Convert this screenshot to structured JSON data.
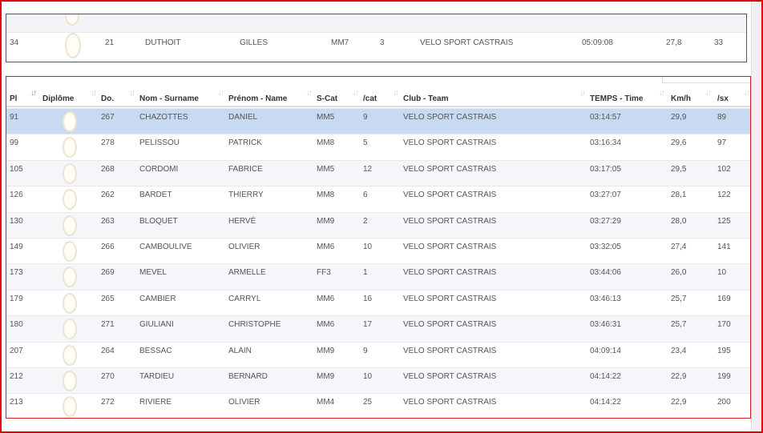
{
  "highlight_row": {
    "pl": "34",
    "do": "21",
    "nom": "DUTHOIT",
    "prenom": "GILLES",
    "scat": "MM7",
    "cat": "3",
    "club": "VELO SPORT CASTRAIS",
    "temps": "05:09:08",
    "kmh": "27,8",
    "sx": "33"
  },
  "columns": [
    "Pl",
    "Diplôme",
    "Do.",
    "Nom - Surname",
    "Prénom - Name",
    "S-Cat",
    "/cat",
    "Club - Team",
    "TEMPS - Time",
    "Km/h",
    "/sx"
  ],
  "icons": {
    "sort": "sort-arrows-icon",
    "diploma": "diploma-medal-icon"
  },
  "colors": {
    "selected_row": "#c8daf1",
    "border": "#e00010"
  },
  "rows": [
    {
      "pl": "91",
      "do": "267",
      "nom": "CHAZOTTES",
      "prenom": "DANIEL",
      "scat": "MM5",
      "cat": "9",
      "club": "VELO SPORT CASTRAIS",
      "temps": "03:14:57",
      "kmh": "29,9",
      "sx": "89"
    },
    {
      "pl": "99",
      "do": "278",
      "nom": "PELISSOU",
      "prenom": "PATRICK",
      "scat": "MM8",
      "cat": "5",
      "club": "VELO SPORT CASTRAIS",
      "temps": "03:16:34",
      "kmh": "29,6",
      "sx": "97"
    },
    {
      "pl": "105",
      "do": "268",
      "nom": "CORDOMI",
      "prenom": "FABRICE",
      "scat": "MM5",
      "cat": "12",
      "club": "VELO SPORT CASTRAIS",
      "temps": "03:17:05",
      "kmh": "29,5",
      "sx": "102"
    },
    {
      "pl": "126",
      "do": "262",
      "nom": "BARDET",
      "prenom": "THIERRY",
      "scat": "MM8",
      "cat": "6",
      "club": "VELO SPORT CASTRAIS",
      "temps": "03:27:07",
      "kmh": "28,1",
      "sx": "122"
    },
    {
      "pl": "130",
      "do": "263",
      "nom": "BLOQUET",
      "prenom": "HERVÉ",
      "scat": "MM9",
      "cat": "2",
      "club": "VELO SPORT CASTRAIS",
      "temps": "03:27:29",
      "kmh": "28,0",
      "sx": "125"
    },
    {
      "pl": "149",
      "do": "266",
      "nom": "CAMBOULIVE",
      "prenom": "OLIVIER",
      "scat": "MM6",
      "cat": "10",
      "club": "VELO SPORT CASTRAIS",
      "temps": "03:32:05",
      "kmh": "27,4",
      "sx": "141"
    },
    {
      "pl": "173",
      "do": "269",
      "nom": "MEVEL",
      "prenom": "ARMELLE",
      "scat": "FF3",
      "cat": "1",
      "club": "VELO SPORT CASTRAIS",
      "temps": "03:44:06",
      "kmh": "26,0",
      "sx": "10"
    },
    {
      "pl": "179",
      "do": "265",
      "nom": "CAMBIER",
      "prenom": "CARRYL",
      "scat": "MM6",
      "cat": "16",
      "club": "VELO SPORT CASTRAIS",
      "temps": "03:46:13",
      "kmh": "25,7",
      "sx": "169"
    },
    {
      "pl": "180",
      "do": "271",
      "nom": "GIULIANI",
      "prenom": "CHRISTOPHE",
      "scat": "MM6",
      "cat": "17",
      "club": "VELO SPORT CASTRAIS",
      "temps": "03:46:31",
      "kmh": "25,7",
      "sx": "170"
    },
    {
      "pl": "207",
      "do": "264",
      "nom": "BESSAC",
      "prenom": "ALAIN",
      "scat": "MM9",
      "cat": "9",
      "club": "VELO SPORT CASTRAIS",
      "temps": "04:09:14",
      "kmh": "23,4",
      "sx": "195"
    },
    {
      "pl": "212",
      "do": "270",
      "nom": "TARDIEU",
      "prenom": "BERNARD",
      "scat": "MM9",
      "cat": "10",
      "club": "VELO SPORT CASTRAIS",
      "temps": "04:14:22",
      "kmh": "22,9",
      "sx": "199"
    },
    {
      "pl": "213",
      "do": "272",
      "nom": "RIVIERE",
      "prenom": "OLIVIER",
      "scat": "MM4",
      "cat": "25",
      "club": "VELO SPORT CASTRAIS",
      "temps": "04:14:22",
      "kmh": "22,9",
      "sx": "200"
    }
  ]
}
